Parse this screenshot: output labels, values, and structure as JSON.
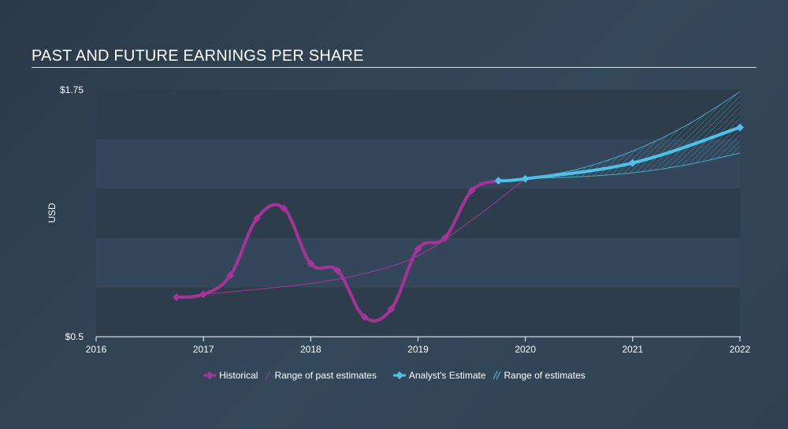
{
  "title": "PAST AND FUTURE EARNINGS PER SHARE",
  "colors": {
    "historical": "#a63399",
    "past_range": "#a63399",
    "estimate": "#4fc0e8",
    "estimate_range": "#4fc0e8",
    "band_dark": "#2e3d4c",
    "band_light": "#34475a"
  },
  "chart_data": {
    "type": "line",
    "title": "PAST AND FUTURE EARNINGS PER SHARE",
    "ylabel": "USD",
    "xlabel": "",
    "xlim": [
      2016,
      2022
    ],
    "ylim": [
      0.5,
      1.75
    ],
    "y_tick_labels": [
      "$1.75",
      "$0.5"
    ],
    "x_tick_labels": [
      "2016",
      "2017",
      "2018",
      "2019",
      "2020",
      "2021",
      "2022"
    ],
    "series": [
      {
        "name": "Historical",
        "kind": "line",
        "x": [
          2016.75,
          2017.0,
          2017.25,
          2017.5,
          2017.75,
          2018.0,
          2018.25,
          2018.5,
          2018.75,
          2019.0,
          2019.25,
          2019.5,
          2019.75
        ],
        "y": [
          0.7,
          0.715,
          0.81,
          1.1,
          1.15,
          0.87,
          0.835,
          0.6,
          0.64,
          0.945,
          1.0,
          1.24,
          1.29
        ]
      },
      {
        "name": "Range of past estimates",
        "kind": "thin-line",
        "x": [
          2017.0,
          2017.5,
          2018.0,
          2018.5,
          2019.0,
          2019.5,
          2020.0
        ],
        "y": [
          0.715,
          0.74,
          0.77,
          0.82,
          0.91,
          1.09,
          1.3
        ]
      },
      {
        "name": "Analyst's Estimate",
        "kind": "line",
        "x": [
          2019.75,
          2020.0,
          2021.0,
          2022.0
        ],
        "y": [
          1.29,
          1.3,
          1.38,
          1.56
        ]
      },
      {
        "name": "Range of estimates",
        "kind": "band",
        "x": [
          2020.0,
          2020.5,
          2021.0,
          2021.5,
          2022.0
        ],
        "low": [
          1.3,
          1.31,
          1.33,
          1.37,
          1.43
        ],
        "high": [
          1.3,
          1.35,
          1.44,
          1.57,
          1.74
        ]
      }
    ],
    "legend": {
      "position": "bottom-center",
      "items": [
        "Historical",
        "Range of past estimates",
        "Analyst's Estimate",
        "Range of estimates"
      ]
    },
    "grid": "horizontal-bands"
  }
}
